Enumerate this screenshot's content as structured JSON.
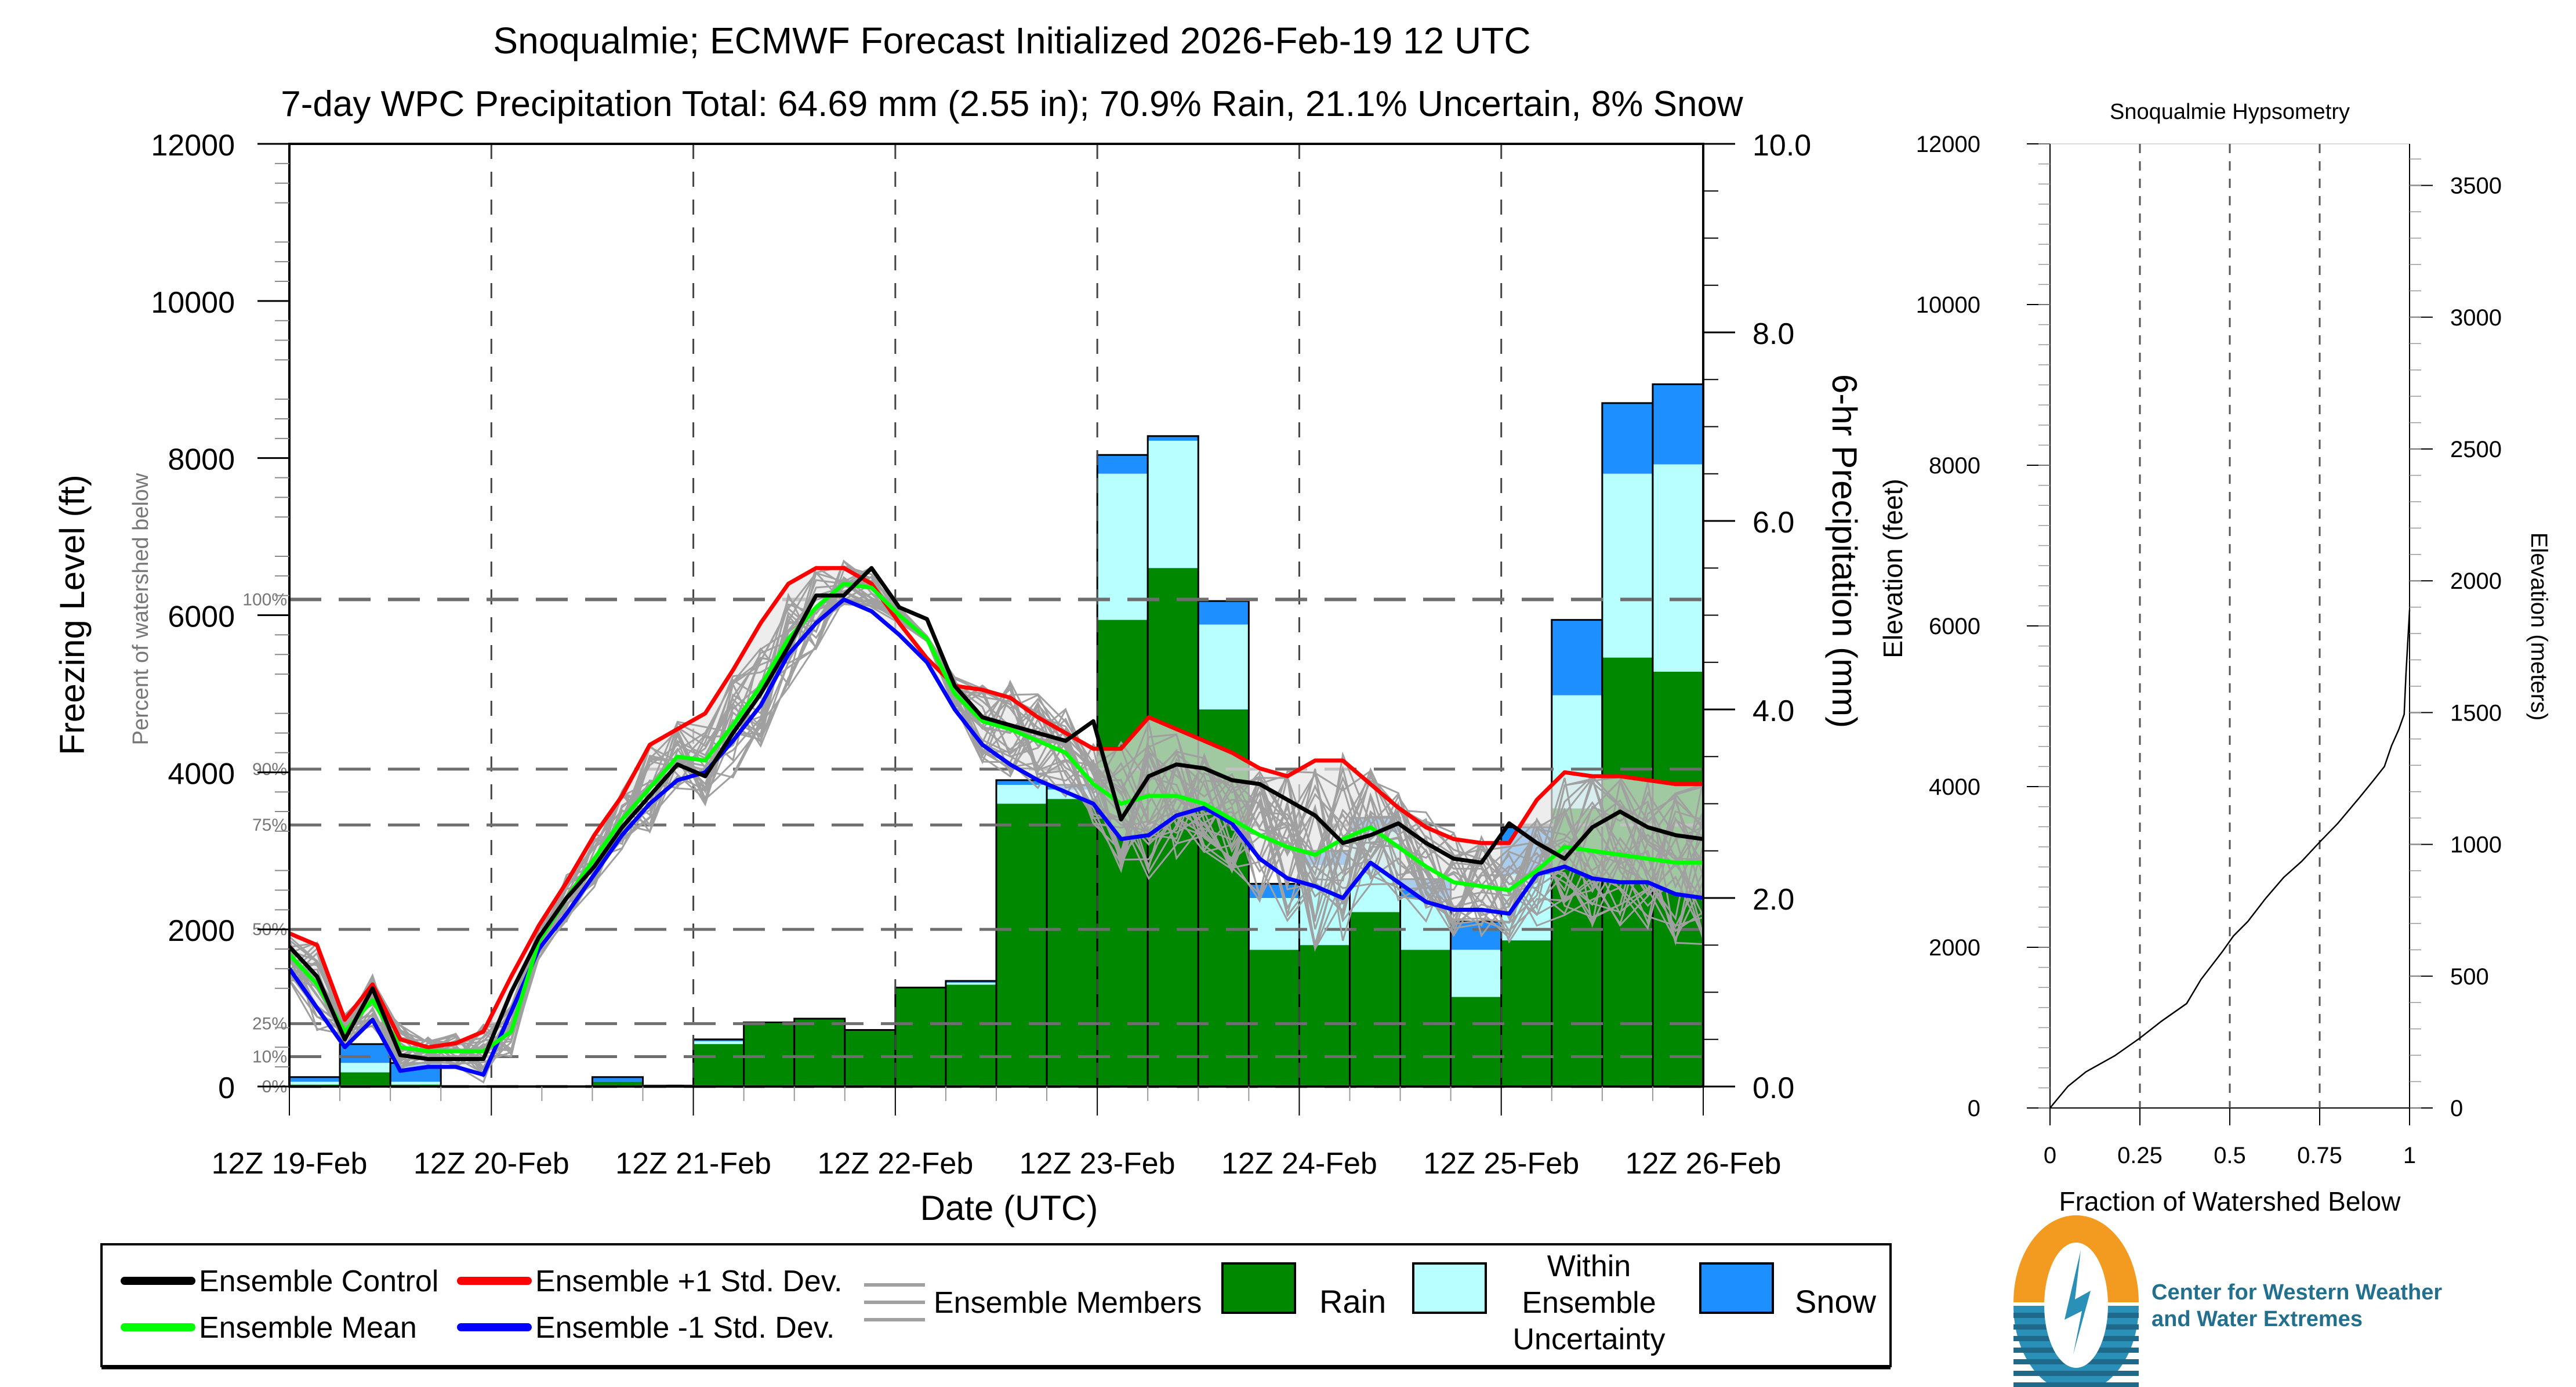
{
  "title": "Snoqualmie; ECMWF Forecast Initialized 2026-Feb-19 12 UTC",
  "subtitle": "7-day WPC Precipitation Total: 64.69 mm (2.55 in);  70.9% Rain, 21.1% Uncertain, 8% Snow",
  "colors": {
    "rain": "#008800",
    "uncertain": "#b8ffff",
    "snow": "#1e8fff",
    "control": "#000000",
    "mean": "#00ff00",
    "plus_std": "#ff0000",
    "minus_std": "#0000ff",
    "members": "#a0a0a0",
    "spread_fill": "#e6e6e6",
    "logo_orange": "#f39a21",
    "logo_blue": "#2a90b8",
    "logo_text": "#23708e"
  },
  "chart_data": [
    {
      "type": "bar",
      "name": "main-forecast",
      "title": "Snoqualmie; ECMWF Forecast Initialized 2026-Feb-19 12 UTC",
      "xlabel": "Date (UTC)",
      "ylabel_left": "Freezing Level (ft)",
      "ylabel_left_secondary": "Percent of watershed below",
      "ylabel_right": "6-hr Precipitation (mm)",
      "ylabel_right_secondary": "Elevation (feet)",
      "x_tick_labels": [
        "12Z 19-Feb",
        "12Z 20-Feb",
        "12Z 21-Feb",
        "12Z 22-Feb",
        "12Z 23-Feb",
        "12Z 24-Feb",
        "12Z 25-Feb",
        "12Z 26-Feb"
      ],
      "left_axis": {
        "range": [
          0,
          12000
        ],
        "ticks": [
          0,
          2000,
          4000,
          6000,
          8000,
          10000,
          12000
        ],
        "labels": [
          "0",
          "2000",
          "4000",
          "6000",
          "8000",
          "10000",
          "12000"
        ]
      },
      "right_axis": {
        "range": [
          0,
          10
        ],
        "ticks": [
          0,
          2,
          4,
          6,
          8,
          10
        ],
        "labels": [
          "0.0",
          "2.0",
          "4.0",
          "6.0",
          "8.0",
          "10.0"
        ]
      },
      "percent_lines": [
        {
          "label": "0%",
          "ft": 0
        },
        {
          "label": "10%",
          "ft": 380
        },
        {
          "label": "25%",
          "ft": 800
        },
        {
          "label": "50%",
          "ft": 2000
        },
        {
          "label": "75%",
          "ft": 3330
        },
        {
          "label": "90%",
          "ft": 4040
        },
        {
          "label": "100%",
          "ft": 6200
        }
      ],
      "periods": 28,
      "precip_mm": {
        "rain": [
          0.02,
          0.15,
          0.02,
          0,
          0,
          0,
          0.05,
          0.01,
          0.45,
          0.67,
          0.72,
          0.6,
          1.05,
          1.08,
          3.0,
          3.05,
          4.95,
          5.5,
          4.0,
          1.45,
          1.5,
          1.85,
          1.45,
          0.95,
          1.55,
          2.95,
          4.55,
          4.4
        ],
        "uncertain_top": [
          0.05,
          0.25,
          0.05,
          0,
          0,
          0,
          0.05,
          0.01,
          0.48,
          0.68,
          0.72,
          0.6,
          1.05,
          1.1,
          3.2,
          3.15,
          6.5,
          6.85,
          4.9,
          2.0,
          2.35,
          2.7,
          2.0,
          1.45,
          2.25,
          4.15,
          6.5,
          6.6
        ],
        "snow_top": [
          0.1,
          0.45,
          0.25,
          0,
          0,
          0,
          0.1,
          0.01,
          0.5,
          0.68,
          0.72,
          0.6,
          1.05,
          1.12,
          3.25,
          3.2,
          6.7,
          6.9,
          5.15,
          2.15,
          2.5,
          2.85,
          2.2,
          1.75,
          2.75,
          4.95,
          7.25,
          7.45
        ]
      },
      "freezing_level_ft": {
        "control": [
          1780,
          1400,
          600,
          1250,
          400,
          350,
          350,
          350,
          1200,
          1900,
          2400,
          2800,
          3300,
          3700,
          4100,
          3950,
          4500,
          5000,
          5600,
          6250,
          6250,
          6600,
          6100,
          5950,
          5100,
          4700,
          4600,
          4500,
          4400,
          4650,
          3400,
          3950,
          4100,
          4050,
          3900,
          3850,
          3650,
          3450,
          3100,
          3200,
          3350,
          3100,
          2900,
          2850,
          3350,
          3100,
          2900,
          3300,
          3500,
          3300,
          3200,
          3150
        ],
        "mean": [
          1680,
          1300,
          700,
          1100,
          500,
          450,
          450,
          450,
          700,
          1850,
          2400,
          2900,
          3400,
          3800,
          4200,
          4150,
          4600,
          5100,
          5700,
          6100,
          6400,
          6350,
          6000,
          5700,
          5000,
          4650,
          4550,
          4400,
          4250,
          3850,
          3600,
          3700,
          3700,
          3600,
          3400,
          3200,
          3050,
          2950,
          3150,
          3300,
          3050,
          2800,
          2600,
          2550,
          2500,
          2750,
          3050,
          3000,
          2950,
          2900,
          2850,
          2850
        ],
        "plus_std": [
          1950,
          1800,
          850,
          1300,
          600,
          500,
          550,
          700,
          1400,
          2050,
          2600,
          3200,
          3700,
          4350,
          4550,
          4750,
          5300,
          5900,
          6400,
          6600,
          6600,
          6400,
          5900,
          5450,
          5100,
          5050,
          4950,
          4700,
          4500,
          4300,
          4300,
          4700,
          4550,
          4400,
          4250,
          4050,
          3950,
          4150,
          4150,
          3850,
          3550,
          3300,
          3150,
          3100,
          3100,
          3650,
          4000,
          3950,
          3950,
          3900,
          3850,
          3850
        ],
        "minus_std": [
          1500,
          1000,
          500,
          850,
          200,
          250,
          250,
          150,
          950,
          1750,
          2200,
          2700,
          3200,
          3600,
          3900,
          4000,
          4400,
          4850,
          5500,
          5900,
          6200,
          6050,
          5750,
          5400,
          4800,
          4350,
          4100,
          3900,
          3750,
          3600,
          3150,
          3200,
          3450,
          3550,
          3350,
          2900,
          2650,
          2550,
          2400,
          2850,
          2600,
          2350,
          2250,
          2250,
          2200,
          2700,
          2800,
          2650,
          2600,
          2600,
          2450,
          2400
        ]
      },
      "legend": [
        {
          "label": "Ensemble Control",
          "type": "line",
          "color": "#000000"
        },
        {
          "label": "Ensemble Mean",
          "type": "line",
          "color": "#00ff00"
        },
        {
          "label": "Ensemble +1 Std. Dev.",
          "type": "line",
          "color": "#ff0000"
        },
        {
          "label": "Ensemble -1 Std. Dev.",
          "type": "line",
          "color": "#0000ff"
        },
        {
          "label": "Ensemble Members",
          "type": "lines",
          "color": "#a0a0a0"
        },
        {
          "label": "Rain",
          "type": "box",
          "color": "#008800"
        },
        {
          "label": "Within Ensemble Uncertainty",
          "type": "box",
          "color": "#b8ffff"
        },
        {
          "label": "Snow",
          "type": "box",
          "color": "#1e8fff"
        }
      ]
    },
    {
      "type": "line",
      "name": "hypsometry",
      "title": "Snoqualmie Hypsometry",
      "xlabel": "Fraction of Watershed Below",
      "ylabel_right": "Elevation (meters)",
      "x_range": [
        0,
        1
      ],
      "x_ticks": [
        0,
        0.25,
        0.5,
        0.75,
        1
      ],
      "x_tick_labels": [
        "0",
        "0.25",
        "0.5",
        "0.75",
        "1"
      ],
      "y_range_ft": [
        0,
        12000
      ],
      "y_ticks_ft": [
        "0",
        "2000",
        "4000",
        "6000",
        "8000",
        "10000",
        "12000"
      ],
      "y_ticks_m": [
        "0",
        "500",
        "1000",
        "1500",
        "2000",
        "2500",
        "3000",
        "3500"
      ],
      "x": [
        0,
        0.05,
        0.1,
        0.18,
        0.25,
        0.31,
        0.38,
        0.42,
        0.48,
        0.51,
        0.55,
        0.6,
        0.65,
        0.7,
        0.75,
        0.8,
        0.86,
        0.9,
        0.93,
        0.95,
        0.97,
        0.985,
        0.99,
        0.995,
        1.0
      ],
      "y": [
        0,
        270,
        450,
        650,
        870,
        1080,
        1300,
        1600,
        1950,
        2140,
        2320,
        2610,
        2870,
        3070,
        3310,
        3540,
        3860,
        4080,
        4250,
        4510,
        4710,
        4900,
        5400,
        5800,
        6200
      ]
    }
  ],
  "logo": {
    "line1": "Center for Western Weather",
    "line2": "and Water Extremes"
  }
}
